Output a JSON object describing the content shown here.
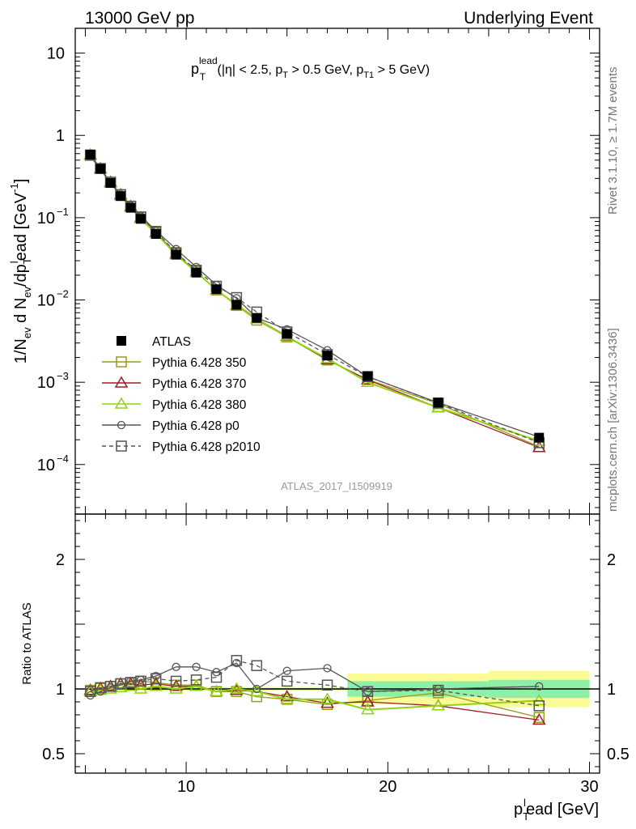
{
  "header": {
    "left": "13000 GeV pp",
    "right": "Underlying Event"
  },
  "side_labels": {
    "rivet": "Rivet 3.1.10, ≥ 1.7M events",
    "mcplots": "mcplots.cern.ch [arXiv:1306.3436]"
  },
  "watermark": "ATLAS_2017_I1509919",
  "chart_data": [
    {
      "type": "line",
      "panel": "main",
      "title_parts": {
        "p": "p",
        "sup": "lead",
        "sub": "T",
        "rest1": " (|η| < 2.5, p",
        "sub2": "T",
        "rest2": " > 0.5 GeV, p",
        "sub3": "T1",
        "rest3": " > 5 GeV)"
      },
      "ylabel": "1/N_ev d N_ev/dp_T^lead [GeV^-1]",
      "ylabel_parts": {
        "a": "1/N",
        "a_sub": "ev",
        "b": " d N",
        "b_sub": "ev",
        "c": "/dp",
        "c_sub": "T",
        "c_sup": "l",
        "d": "ead [GeV",
        "d_sup": "-1",
        "e": "]"
      },
      "y_scale": "log",
      "ylim": [
        2.5e-05,
        20
      ],
      "xlim": [
        4.5,
        30.5
      ],
      "y_tick_labels": [
        {
          "v": 10,
          "base": "10",
          "exp": ""
        },
        {
          "v": 1,
          "base": "1",
          "exp": ""
        },
        {
          "v": 0.1,
          "base": "10",
          "exp": "−1"
        },
        {
          "v": 0.01,
          "base": "10",
          "exp": "−2"
        },
        {
          "v": 0.001,
          "base": "10",
          "exp": "−3"
        },
        {
          "v": 0.0001,
          "base": "10",
          "exp": "−4"
        }
      ],
      "legend_position": "left-middle",
      "series": [
        {
          "name": "ATLAS",
          "marker": "filled-square",
          "color": "#000000",
          "x": [
            5.25,
            5.75,
            6.25,
            6.75,
            7.25,
            7.75,
            8.5,
            9.5,
            10.5,
            11.5,
            12.5,
            13.5,
            15,
            17,
            19,
            22.5,
            27.5
          ],
          "y": [
            0.585,
            0.393,
            0.264,
            0.183,
            0.132,
            0.0968,
            0.0634,
            0.0355,
            0.0215,
            0.0135,
            0.00875,
            0.00605,
            0.00386,
            0.00211,
            0.00119,
            0.000566,
            0.000212
          ]
        },
        {
          "name": "Pythia 6.428 350",
          "marker": "open-square",
          "color": "#9a9a1c",
          "x": [
            5.25,
            5.75,
            6.25,
            6.75,
            7.25,
            7.75,
            8.5,
            9.5,
            10.5,
            11.5,
            12.5,
            13.5,
            15,
            17,
            19,
            22.5,
            27.5
          ],
          "y": [
            0.579,
            0.395,
            0.27,
            0.191,
            0.138,
            0.102,
            0.0665,
            0.0366,
            0.0221,
            0.0132,
            0.00857,
            0.00568,
            0.00355,
            0.00186,
            0.00108,
            0.000549,
            0.000165
          ]
        },
        {
          "name": "Pythia 6.428 370",
          "marker": "open-triangle",
          "color": "#a01b26",
          "x": [
            5.25,
            5.75,
            6.25,
            6.75,
            7.25,
            7.75,
            8.5,
            9.5,
            10.5,
            11.5,
            12.5,
            13.5,
            15,
            17,
            19,
            22.5,
            27.5
          ],
          "y": [
            0.579,
            0.395,
            0.27,
            0.19,
            0.137,
            0.1,
            0.0659,
            0.0362,
            0.0219,
            0.0132,
            0.00866,
            0.00593,
            0.00363,
            0.00188,
            0.00107,
            0.000492,
            0.000161
          ]
        },
        {
          "name": "Pythia 6.428 380",
          "marker": "open-triangle",
          "color": "#8fd412",
          "x": [
            5.25,
            5.75,
            6.25,
            6.75,
            7.25,
            7.75,
            8.5,
            9.5,
            10.5,
            11.5,
            12.5,
            13.5,
            15,
            17,
            19,
            22.5,
            27.5
          ],
          "y": [
            0.573,
            0.389,
            0.264,
            0.185,
            0.134,
            0.0968,
            0.0646,
            0.0355,
            0.0219,
            0.0132,
            0.00875,
            0.00593,
            0.00355,
            0.00194,
            0.001,
            0.000492,
            0.000193
          ]
        },
        {
          "name": "Pythia 6.428 p0",
          "marker": "open-circle",
          "color": "#555555",
          "x": [
            5.25,
            5.75,
            6.25,
            6.75,
            7.25,
            7.75,
            8.5,
            9.5,
            10.5,
            11.5,
            12.5,
            13.5,
            15,
            17,
            19,
            22.5,
            27.5
          ],
          "y": [
            0.556,
            0.385,
            0.267,
            0.188,
            0.14,
            0.104,
            0.0697,
            0.0415,
            0.0252,
            0.0152,
            0.0105,
            0.00605,
            0.0044,
            0.00245,
            0.00117,
            0.000566,
            0.000216
          ]
        },
        {
          "name": "Pythia 6.428 p2010",
          "marker": "open-square",
          "color": "#555555",
          "dash": true,
          "x": [
            5.25,
            5.75,
            6.25,
            6.75,
            7.25,
            7.75,
            8.5,
            9.5,
            10.5,
            11.5,
            12.5,
            13.5,
            15,
            17,
            19,
            22.5,
            27.5
          ],
          "y": [
            0.573,
            0.396,
            0.27,
            0.19,
            0.138,
            0.102,
            0.0682,
            0.0376,
            0.023,
            0.0147,
            0.0107,
            0.00714,
            0.00409,
            0.00217,
            0.00117,
            0.00056,
            0.000184
          ]
        }
      ]
    },
    {
      "type": "line",
      "panel": "ratio",
      "ylabel": "Ratio to ATLAS",
      "ylim": [
        0.35,
        2.35
      ],
      "xlim": [
        4.5,
        30.5
      ],
      "xlabel_parts": {
        "p": "p",
        "sub": "T",
        "sup": "l",
        "rest": "ead [GeV]"
      },
      "y_tick_labels": [
        {
          "v": 2,
          "label": "2"
        },
        {
          "v": 1,
          "label": "1"
        },
        {
          "v": 0.5,
          "label": "0.5"
        }
      ],
      "x_tick_labels": [
        {
          "v": 10,
          "label": "10"
        },
        {
          "v": 20,
          "label": "20"
        },
        {
          "v": 30,
          "label": "30"
        }
      ],
      "bands": {
        "edges": [
          5,
          18,
          25,
          30
        ],
        "yellow": [
          [
            0.985,
            1.015
          ],
          [
            0.88,
            1.12
          ],
          [
            0.86,
            1.14
          ]
        ],
        "green": [
          [
            0.993,
            1.007
          ],
          [
            0.94,
            1.06
          ],
          [
            0.93,
            1.07
          ]
        ]
      },
      "series": [
        {
          "name": "Pythia 6.428 350",
          "marker": "open-square",
          "color": "#9a9a1c",
          "x": [
            5.25,
            5.75,
            6.25,
            6.75,
            7.25,
            7.75,
            8.5,
            9.5,
            10.5,
            11.5,
            12.5,
            13.5,
            15,
            17,
            19,
            22.5,
            27.5
          ],
          "y": [
            0.99,
            1.005,
            1.02,
            1.04,
            1.05,
            1.06,
            1.05,
            1.03,
            1.03,
            0.98,
            0.98,
            0.94,
            0.92,
            0.88,
            0.91,
            0.97,
            0.78
          ]
        },
        {
          "name": "Pythia 6.428 370",
          "marker": "open-triangle",
          "color": "#a01b26",
          "x": [
            5.25,
            5.75,
            6.25,
            6.75,
            7.25,
            7.75,
            8.5,
            9.5,
            10.5,
            11.5,
            12.5,
            13.5,
            15,
            17,
            19,
            22.5,
            27.5
          ],
          "y": [
            0.99,
            1.005,
            1.02,
            1.04,
            1.04,
            1.03,
            1.04,
            1.02,
            1.02,
            0.98,
            0.99,
            0.98,
            0.94,
            0.89,
            0.9,
            0.87,
            0.76
          ]
        },
        {
          "name": "Pythia 6.428 380",
          "marker": "open-triangle",
          "color": "#8fd412",
          "x": [
            5.25,
            5.75,
            6.25,
            6.75,
            7.25,
            7.75,
            8.5,
            9.5,
            10.5,
            11.5,
            12.5,
            13.5,
            15,
            17,
            19,
            22.5,
            27.5
          ],
          "y": [
            0.98,
            0.99,
            1.0,
            1.01,
            1.02,
            1.0,
            1.02,
            1.0,
            1.02,
            0.98,
            1.0,
            0.98,
            0.92,
            0.92,
            0.84,
            0.87,
            0.91
          ]
        },
        {
          "name": "Pythia 6.428 p0",
          "marker": "open-circle",
          "color": "#555555",
          "x": [
            5.25,
            5.75,
            6.25,
            6.75,
            7.25,
            7.75,
            8.5,
            9.5,
            10.5,
            11.5,
            12.5,
            13.5,
            15,
            17,
            19,
            22.5,
            27.5
          ],
          "y": [
            0.95,
            0.98,
            1.01,
            1.03,
            1.06,
            1.07,
            1.1,
            1.17,
            1.17,
            1.13,
            1.2,
            1.0,
            1.14,
            1.16,
            0.98,
            1.0,
            1.02
          ]
        },
        {
          "name": "Pythia 6.428 p2010",
          "marker": "open-square",
          "color": "#555555",
          "dash": true,
          "x": [
            5.25,
            5.75,
            6.25,
            6.75,
            7.25,
            7.75,
            8.5,
            9.5,
            10.5,
            11.5,
            12.5,
            13.5,
            15,
            17,
            19,
            22.5,
            27.5
          ],
          "y": [
            0.98,
            1.01,
            1.02,
            1.04,
            1.05,
            1.06,
            1.08,
            1.06,
            1.07,
            1.09,
            1.22,
            1.18,
            1.06,
            1.03,
            0.98,
            0.99,
            0.87
          ]
        }
      ]
    }
  ]
}
